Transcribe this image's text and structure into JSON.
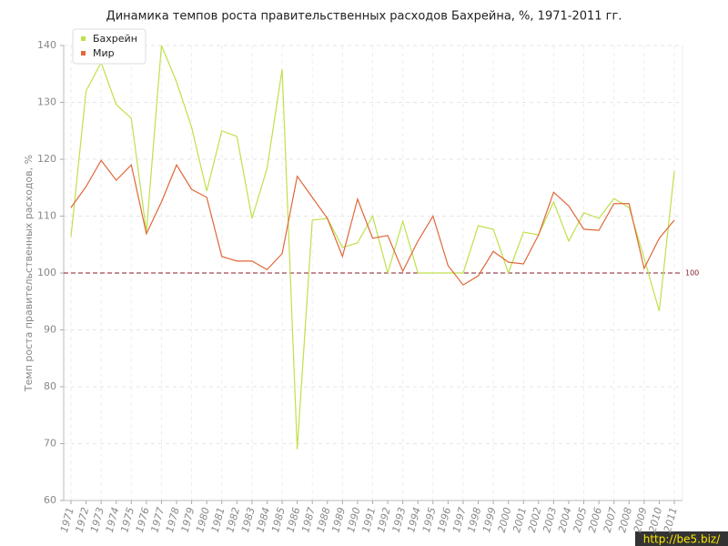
{
  "chart_data": {
    "type": "line",
    "title": "Динамика темпов роста правительственных расходов Бахрейна, %, 1971-2011 гг.",
    "y_label": "Темп роста правительственных расходов, %",
    "categories": [
      "1971",
      "1972",
      "1973",
      "1974",
      "1975",
      "1976",
      "1977",
      "1978",
      "1979",
      "1980",
      "1981",
      "1982",
      "1983",
      "1984",
      "1985",
      "1986",
      "1987",
      "1988",
      "1989",
      "1990",
      "1991",
      "1992",
      "1993",
      "1994",
      "1995",
      "1996",
      "1997",
      "1998",
      "1999",
      "2000",
      "2001",
      "2002",
      "2003",
      "2004",
      "2005",
      "2006",
      "2007",
      "2008",
      "2009",
      "2010",
      "2011"
    ],
    "series": [
      {
        "name": "Бахрейн",
        "color": "#bfe04a",
        "values": [
          106.4,
          132,
          137,
          129.6,
          127.2,
          107.2,
          140,
          133.6,
          125.6,
          114.4,
          125,
          124,
          109.6,
          118.4,
          135.8,
          69,
          109.3,
          109.6,
          104.5,
          105.3,
          110,
          100,
          109.1,
          100,
          100,
          100,
          100,
          108.3,
          107.7,
          100,
          107.2,
          106.7,
          112.5,
          105.6,
          110.6,
          109.6,
          113.1,
          111.5,
          102.6,
          93.3,
          117.9
        ]
      },
      {
        "name": "Мир",
        "color": "#e0673a",
        "values": [
          111.5,
          115.2,
          119.8,
          116.3,
          119,
          106.9,
          112.5,
          119,
          114.7,
          113.3,
          102.9,
          102.1,
          102.1,
          100.6,
          103.4,
          117,
          113.3,
          109.6,
          102.9,
          113,
          106.1,
          106.6,
          100.3,
          105.6,
          110,
          101.3,
          97.9,
          99.5,
          103.8,
          101.9,
          101.6,
          106.7,
          114.2,
          111.8,
          107.7,
          107.5,
          112.2,
          112.2,
          100.8,
          106.1,
          109.3
        ]
      }
    ],
    "ylim": [
      60,
      140
    ],
    "yticks": [
      60,
      70,
      80,
      90,
      100,
      110,
      120,
      130,
      140
    ],
    "grid": true,
    "reference_line": {
      "value": 100,
      "color": "#8b1a2b"
    },
    "legend": "top-left"
  },
  "watermark": "http://be5.biz/"
}
